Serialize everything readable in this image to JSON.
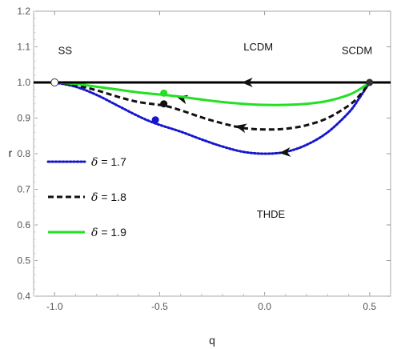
{
  "chart_data": {
    "type": "line",
    "xlabel": "q",
    "ylabel": "r",
    "xlim": [
      -1.1,
      0.6
    ],
    "ylim": [
      0.4,
      1.2
    ],
    "xticks": [
      -1.0,
      -0.5,
      0.0,
      0.5
    ],
    "xtick_labels": [
      "-1.0",
      "-0.5",
      "0.0",
      "0.5"
    ],
    "yticks": [
      0.4,
      0.5,
      0.6,
      0.7,
      0.8,
      0.9,
      1.0,
      1.1,
      1.2
    ],
    "ytick_labels": [
      "0.4",
      "0.5",
      "0.6",
      "0.7",
      "0.8",
      "0.9",
      "1.0",
      "1.1",
      "1.2"
    ],
    "grid": false,
    "legend_position": "left",
    "series": [
      {
        "name": "δ = 1.7",
        "legend_symbol": "δ",
        "legend_value": " = 1.7",
        "style": "dotted",
        "color": "#1515d0",
        "x": [
          -1.0,
          -0.9,
          -0.8,
          -0.7,
          -0.6,
          -0.52,
          -0.4,
          -0.3,
          -0.2,
          -0.1,
          0.0,
          0.1,
          0.2,
          0.3,
          0.4,
          0.45,
          0.5
        ],
        "y": [
          1.0,
          0.988,
          0.965,
          0.935,
          0.905,
          0.885,
          0.862,
          0.84,
          0.82,
          0.805,
          0.8,
          0.805,
          0.825,
          0.86,
          0.915,
          0.955,
          1.0
        ],
        "marker": {
          "x": -0.52,
          "y": 0.895
        },
        "arrows": [
          {
            "x": 0.07,
            "y": 0.802
          }
        ]
      },
      {
        "name": "δ = 1.8",
        "legend_symbol": "δ",
        "legend_value": " = 1.8",
        "style": "dashed",
        "color": "#111111",
        "x": [
          -1.0,
          -0.9,
          -0.8,
          -0.7,
          -0.6,
          -0.48,
          -0.4,
          -0.3,
          -0.2,
          -0.1,
          0.0,
          0.1,
          0.2,
          0.3,
          0.4,
          0.45,
          0.5
        ],
        "y": [
          1.0,
          0.992,
          0.978,
          0.96,
          0.945,
          0.935,
          0.922,
          0.902,
          0.885,
          0.872,
          0.868,
          0.87,
          0.88,
          0.9,
          0.935,
          0.962,
          1.0
        ],
        "marker": {
          "x": -0.48,
          "y": 0.94
        },
        "arrows": [
          {
            "x": -0.42,
            "y": 0.96
          },
          {
            "x": -0.14,
            "y": 0.878
          }
        ]
      },
      {
        "name": "δ = 1.9",
        "legend_symbol": "δ",
        "legend_value": " = 1.9",
        "style": "solid",
        "color": "#22e022",
        "x": [
          -1.0,
          -0.9,
          -0.8,
          -0.7,
          -0.6,
          -0.48,
          -0.4,
          -0.3,
          -0.2,
          -0.1,
          0.0,
          0.1,
          0.2,
          0.3,
          0.4,
          0.45,
          0.5
        ],
        "y": [
          1.0,
          0.996,
          0.988,
          0.98,
          0.972,
          0.965,
          0.96,
          0.952,
          0.945,
          0.94,
          0.937,
          0.937,
          0.94,
          0.948,
          0.965,
          0.98,
          1.0
        ],
        "marker": {
          "x": -0.48,
          "y": 0.97
        },
        "arrows": []
      },
      {
        "name": "LCDM",
        "style": "solid",
        "color": "#000000",
        "x": [
          -1.1,
          0.6
        ],
        "y": [
          1.0,
          1.0
        ],
        "arrows": [
          {
            "x": -0.11,
            "y": 1.0
          }
        ]
      }
    ],
    "points": [
      {
        "label": "SS",
        "x": -1.0,
        "y": 1.0,
        "style": "open-circle"
      },
      {
        "label": "SCDM",
        "x": 0.5,
        "y": 1.0,
        "style": "filled-circle"
      }
    ],
    "annotations": [
      {
        "text": "SS",
        "x": -0.95,
        "y": 1.08
      },
      {
        "text": "LCDM",
        "x": -0.03,
        "y": 1.09
      },
      {
        "text": "SCDM",
        "x": 0.44,
        "y": 1.08
      },
      {
        "text": "THDE",
        "x": 0.03,
        "y": 0.62
      }
    ]
  }
}
